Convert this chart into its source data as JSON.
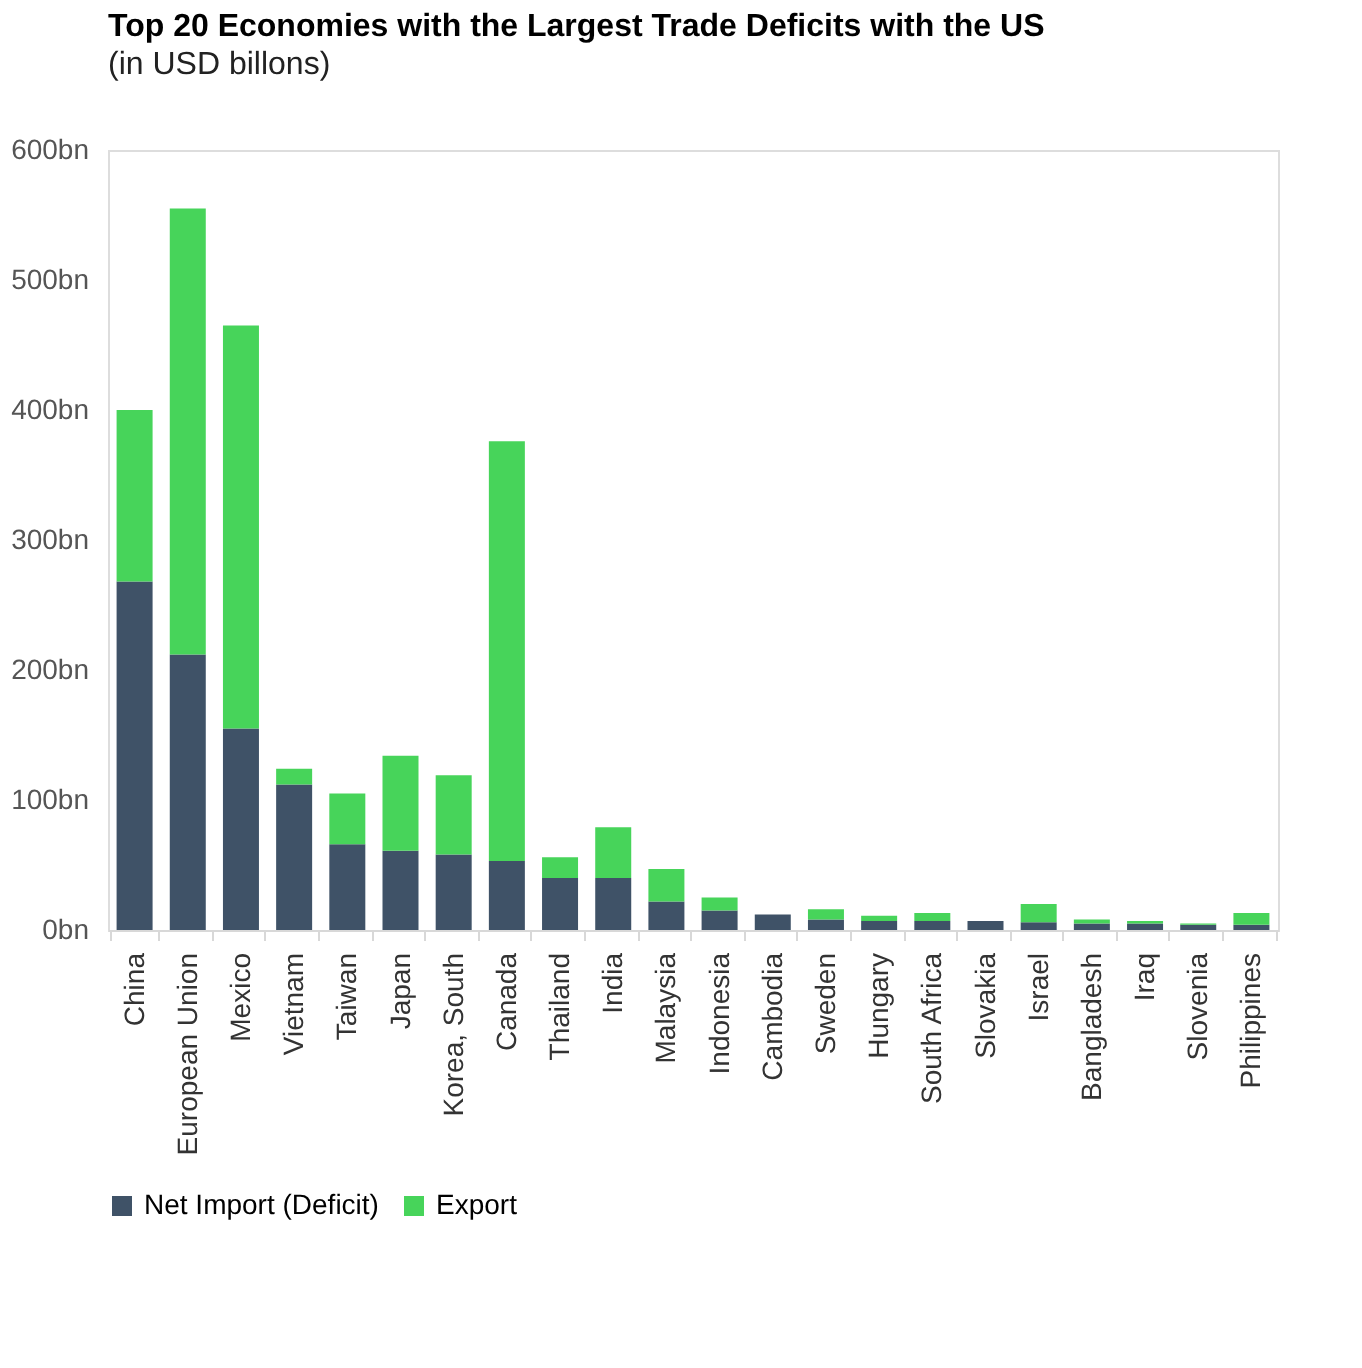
{
  "chart_data": {
    "type": "bar",
    "stacked": true,
    "title": "Top 20 Economies with the Largest Trade Deficits with the US",
    "subtitle": "(in USD billons)",
    "categories": [
      "China",
      "European Union",
      "Mexico",
      "Vietnam",
      "Taiwan",
      "Japan",
      "Korea, South",
      "Canada",
      "Thailand",
      "India",
      "Malaysia",
      "Indonesia",
      "Cambodia",
      "Sweden",
      "Hungary",
      "South Africa",
      "Slovakia",
      "Israel",
      "Bangladesh",
      "Iraq",
      "Slovenia",
      "Philippines"
    ],
    "series": [
      {
        "name": "Net Import (Deficit)",
        "color": "#3f5267",
        "values": [
          268,
          212,
          155,
          112,
          66,
          61,
          58,
          53,
          40,
          40,
          22,
          15,
          12,
          8,
          7,
          7,
          7,
          6,
          5,
          5,
          4,
          4
        ]
      },
      {
        "name": "Export",
        "color": "#47d45a",
        "values": [
          132,
          343,
          310,
          12,
          39,
          73,
          61,
          323,
          16,
          39,
          25,
          10,
          null,
          8,
          4,
          6,
          null,
          14,
          3,
          2,
          1,
          9
        ]
      }
    ],
    "ylim": [
      0,
      600
    ],
    "yticks": [
      {
        "value": 0,
        "label": "0bn"
      },
      {
        "value": 100,
        "label": "100bn"
      },
      {
        "value": 200,
        "label": "200bn"
      },
      {
        "value": 300,
        "label": "300bn"
      },
      {
        "value": 400,
        "label": "400bn"
      },
      {
        "value": 500,
        "label": "500bn"
      },
      {
        "value": 600,
        "label": "600bn"
      }
    ],
    "grid": false,
    "legend": "bottom"
  }
}
